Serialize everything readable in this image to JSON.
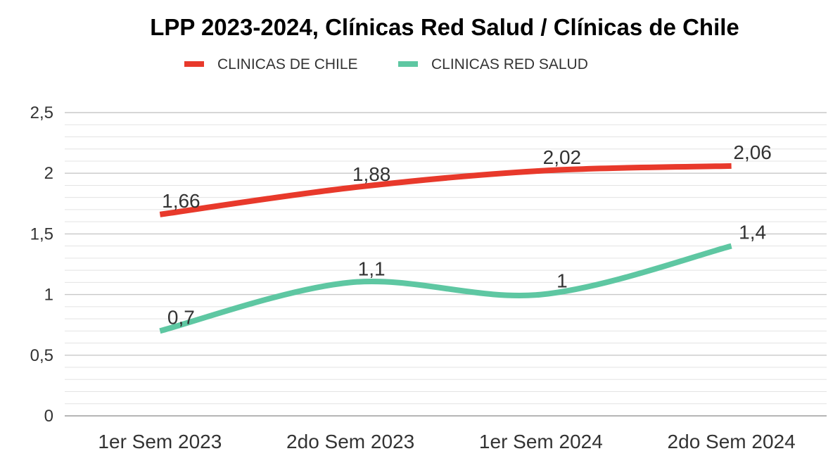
{
  "chart_data": {
    "type": "line",
    "title": "LPP 2023-2024, Clínicas Red Salud / Clínicas de Chile",
    "categories": [
      "1er Sem 2023",
      "2do Sem 2023",
      "1er Sem 2024",
      "2do Sem 2024"
    ],
    "yticks": [
      "0",
      "0,5",
      "1",
      "1,5",
      "2",
      "2,5"
    ],
    "ylim": [
      0,
      2.5
    ],
    "ytick_values": [
      0,
      0.5,
      1,
      1.5,
      2,
      2.5
    ],
    "grid": true,
    "legend_position": "top",
    "series": [
      {
        "name": "CLINICAS DE CHILE",
        "color": "#e8392b",
        "values": [
          1.66,
          1.88,
          2.02,
          2.06
        ],
        "labels": [
          "1,66",
          "1,88",
          "2,02",
          "2,06"
        ]
      },
      {
        "name": "CLINICAS RED SALUD",
        "color": "#5ec7a2",
        "values": [
          0.7,
          1.1,
          1,
          1.4
        ],
        "labels": [
          "0,7",
          "1,1",
          "1",
          "1,4"
        ]
      }
    ]
  }
}
